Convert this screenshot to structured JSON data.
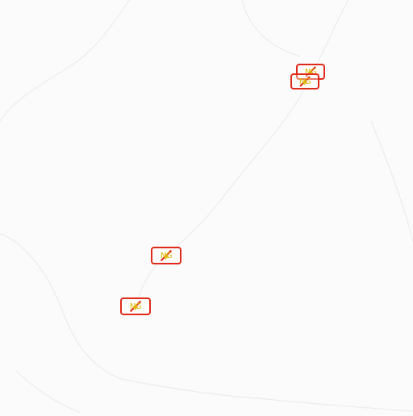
{
  "map": {
    "background": "#fbfbfb",
    "road_color": "#eeeeee",
    "marker_border_color": "#e02a1a",
    "marker_label_color": "#e0b800",
    "markers": [
      {
        "label": "NG",
        "icon": "no-gas-icon"
      },
      {
        "label": "NG",
        "icon": "no-gas-icon"
      },
      {
        "label": "NG",
        "icon": "no-gas-icon"
      },
      {
        "label": "NG",
        "icon": "no-gas-icon"
      }
    ]
  }
}
